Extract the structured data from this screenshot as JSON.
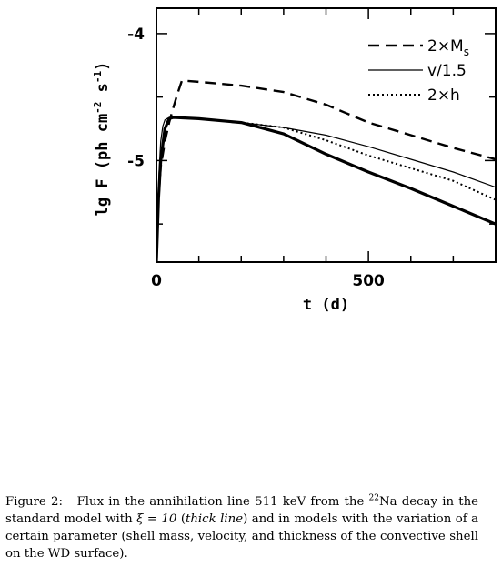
{
  "chart_data": {
    "type": "line",
    "title": "",
    "xlabel": "t (d)",
    "ylabel_parts": [
      "lg F (ph cm",
      "-2",
      " s",
      "-1",
      ")"
    ],
    "xlim": [
      0,
      800
    ],
    "ylim": [
      -5.8,
      -3.8
    ],
    "x_ticks": [
      {
        "value": 0,
        "label": "0"
      },
      {
        "value": 500,
        "label": "500"
      }
    ],
    "y_ticks": [
      {
        "value": -4,
        "label": "-4"
      },
      {
        "value": -5,
        "label": "-5"
      }
    ],
    "series": [
      {
        "name": "2×Ms",
        "legend_main": "2×M",
        "legend_sub": "s",
        "style": "dashed",
        "width": 2.4,
        "points": [
          [
            0,
            -5.8
          ],
          [
            5,
            -5.3
          ],
          [
            10,
            -5.05
          ],
          [
            20,
            -4.85
          ],
          [
            30,
            -4.7
          ],
          [
            40,
            -4.58
          ],
          [
            50,
            -4.47
          ],
          [
            60,
            -4.37
          ],
          [
            100,
            -4.38
          ],
          [
            200,
            -4.41
          ],
          [
            300,
            -4.46
          ],
          [
            400,
            -4.56
          ],
          [
            500,
            -4.7
          ],
          [
            600,
            -4.8
          ],
          [
            700,
            -4.9
          ],
          [
            800,
            -4.99
          ]
        ]
      },
      {
        "name": "v/1.5",
        "legend_main": "v/1.5",
        "legend_sub": "",
        "style": "solid",
        "width": 1.2,
        "points": [
          [
            0,
            -5.8
          ],
          [
            3,
            -5.45
          ],
          [
            6,
            -5.1
          ],
          [
            10,
            -4.85
          ],
          [
            15,
            -4.73
          ],
          [
            20,
            -4.68
          ],
          [
            30,
            -4.66
          ],
          [
            100,
            -4.67
          ],
          [
            200,
            -4.7
          ],
          [
            300,
            -4.74
          ],
          [
            400,
            -4.8
          ],
          [
            500,
            -4.89
          ],
          [
            600,
            -4.99
          ],
          [
            700,
            -5.09
          ],
          [
            800,
            -5.21
          ]
        ]
      },
      {
        "name": "2×h",
        "legend_main": "2×h",
        "legend_sub": "",
        "style": "dotted",
        "width": 2,
        "points": [
          [
            0,
            -5.8
          ],
          [
            5,
            -5.3
          ],
          [
            10,
            -5.0
          ],
          [
            20,
            -4.75
          ],
          [
            30,
            -4.67
          ],
          [
            40,
            -4.66
          ],
          [
            100,
            -4.67
          ],
          [
            200,
            -4.7
          ],
          [
            300,
            -4.74
          ],
          [
            400,
            -4.84
          ],
          [
            500,
            -4.96
          ],
          [
            600,
            -5.06
          ],
          [
            700,
            -5.16
          ],
          [
            800,
            -5.31
          ]
        ]
      },
      {
        "name": "standard model (thick line)",
        "legend_main": "",
        "legend_sub": "",
        "style": "thick",
        "width": 3.2,
        "points": [
          [
            0,
            -5.8
          ],
          [
            5,
            -5.3
          ],
          [
            10,
            -5.0
          ],
          [
            20,
            -4.75
          ],
          [
            30,
            -4.67
          ],
          [
            40,
            -4.66
          ],
          [
            100,
            -4.67
          ],
          [
            200,
            -4.7
          ],
          [
            300,
            -4.79
          ],
          [
            400,
            -4.95
          ],
          [
            500,
            -5.09
          ],
          [
            600,
            -5.22
          ],
          [
            700,
            -5.36
          ],
          [
            800,
            -5.5
          ]
        ]
      }
    ],
    "legend_position": "top-right"
  },
  "caption": {
    "figure_label": "Figure 2:",
    "text_1": "Flux in the annihilation line 511 keV from the ",
    "isotope_mass": "22",
    "isotope_symbol": "Na",
    "text_2": " decay in the standard model with ",
    "xi": "ξ = 10",
    "text_3": " (",
    "thick_label": "thick line",
    "text_4": ") and in models with the variation of a certain parameter (shell mass, velocity, and thickness of the convective shell on the WD surface)."
  }
}
